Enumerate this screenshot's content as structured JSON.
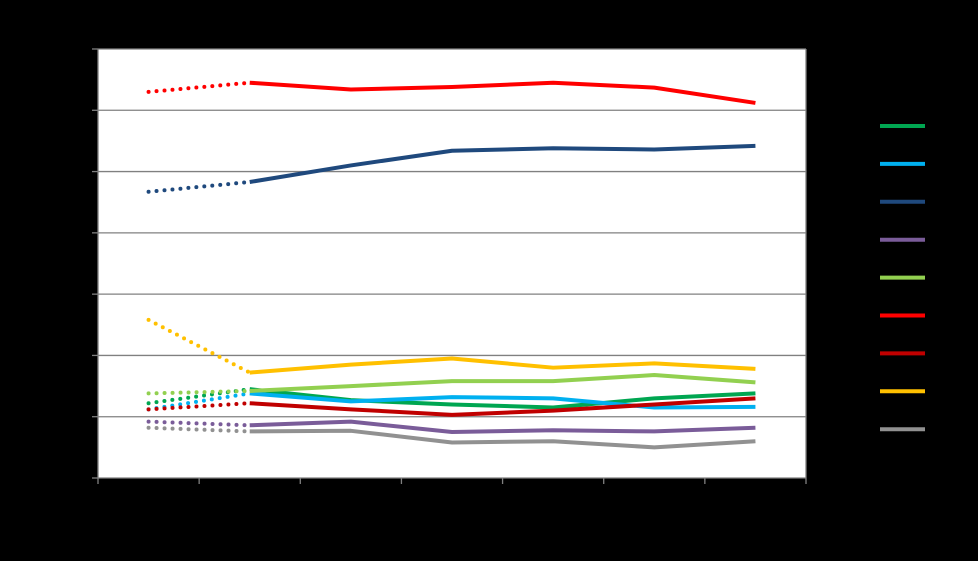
{
  "chart_data": {
    "type": "line",
    "title": "",
    "xlabel": "",
    "ylabel": "",
    "grid": true,
    "legend_position": "right",
    "colors": {
      "background": "#000000",
      "plot_background": "#ffffff",
      "gridline": "#808080",
      "axis": "#808080"
    },
    "xlim": [
      0,
      7
    ],
    "ylim": [
      0,
      7
    ],
    "y_ticks": [
      0,
      1,
      2,
      3,
      4,
      5,
      6,
      7
    ],
    "x_ticks": [
      0,
      1,
      2,
      3,
      4,
      5,
      6,
      7
    ],
    "x": [
      0.5,
      1.5,
      2.5,
      3.5,
      4.5,
      5.5,
      6.5
    ],
    "dotted_segment_until_index": 1,
    "series": [
      {
        "name": "",
        "color": "#00a651",
        "values": [
          1.22,
          1.45,
          1.27,
          1.2,
          1.15,
          1.3,
          1.38
        ]
      },
      {
        "name": "",
        "color": "#00b0f0",
        "values": [
          1.12,
          1.38,
          1.25,
          1.32,
          1.3,
          1.15,
          1.16
        ]
      },
      {
        "name": "",
        "color": "#1f497d",
        "values": [
          4.67,
          4.83,
          5.1,
          5.34,
          5.38,
          5.36,
          5.42
        ]
      },
      {
        "name": "",
        "color": "#7a5c99",
        "values": [
          0.92,
          0.86,
          0.92,
          0.75,
          0.78,
          0.76,
          0.82
        ]
      },
      {
        "name": "",
        "color": "#92d050",
        "values": [
          1.38,
          1.42,
          1.5,
          1.58,
          1.58,
          1.68,
          1.56
        ]
      },
      {
        "name": "",
        "color": "#ff0000",
        "values": [
          6.3,
          6.45,
          6.34,
          6.38,
          6.45,
          6.37,
          6.12
        ]
      },
      {
        "name": "",
        "color": "#c00000",
        "values": [
          1.12,
          1.22,
          1.12,
          1.03,
          1.1,
          1.2,
          1.3
        ]
      },
      {
        "name": "",
        "color": "#ffc000",
        "values": [
          2.58,
          1.72,
          1.85,
          1.95,
          1.8,
          1.87,
          1.78
        ]
      },
      {
        "name": "",
        "color": "#919191",
        "values": [
          0.82,
          0.76,
          0.77,
          0.58,
          0.6,
          0.5,
          0.6
        ]
      }
    ]
  }
}
